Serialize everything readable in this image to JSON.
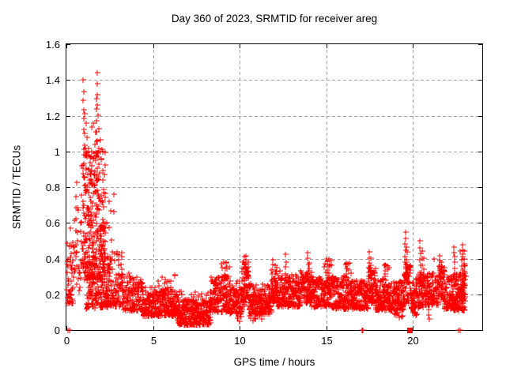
{
  "window": {
    "background": "#ffffff"
  },
  "chart_data": {
    "type": "scatter",
    "title": "Day 360 of 2023, SRMTID for receiver areg",
    "xlabel": "GPS time / hours",
    "ylabel": "SRMTID / TECUs",
    "series_name": "SRMTID",
    "xlim": [
      0,
      24
    ],
    "ylim": [
      0,
      1.6
    ],
    "x_ticks": [
      0,
      5,
      10,
      15,
      20
    ],
    "x_tick_labels": [
      "0",
      "5",
      "10",
      "15",
      "20"
    ],
    "y_ticks": [
      0,
      0.2,
      0.4,
      0.6,
      0.8,
      1,
      1.2,
      1.4,
      1.6
    ],
    "y_tick_labels": [
      "0",
      "0.2",
      "0.4",
      "0.6",
      "0.8",
      "1",
      "1.2",
      "1.4",
      "1.6"
    ],
    "grid": true,
    "legend_position": "none",
    "marker": "plus",
    "marker_size_px": 7,
    "marker_color": "#ff0000",
    "grid_color": "#a0a0a0",
    "axis_color": "#000000",
    "seed": 20231226,
    "density_bands": {
      "format": [
        "x_start",
        "x_end",
        "x_step",
        "points_per_step",
        "y_min",
        "y_max",
        "skew_power"
      ],
      "segments": [
        [
          0.03,
          0.4,
          0.03,
          3,
          0.15,
          0.5,
          1.7
        ],
        [
          0.03,
          0.28,
          0.045,
          1,
          0.3,
          0.63,
          1.0
        ],
        [
          0.42,
          0.95,
          0.035,
          2,
          0.22,
          0.62,
          1.2
        ],
        [
          0.6,
          0.95,
          0.06,
          1,
          0.55,
          0.97,
          1.0
        ],
        [
          0.95,
          2.25,
          0.018,
          4,
          0.28,
          1.02,
          1.3
        ],
        [
          1.05,
          1.95,
          0.055,
          1,
          0.95,
          1.16,
          1.0
        ],
        [
          1.15,
          2.45,
          0.019,
          2,
          0.12,
          0.38,
          1.3
        ],
        [
          2.25,
          3.25,
          0.026,
          3,
          0.13,
          0.45,
          1.5
        ],
        [
          2.25,
          2.75,
          0.075,
          1,
          0.45,
          0.8,
          1.0
        ],
        [
          3.25,
          4.4,
          0.024,
          3,
          0.11,
          0.3,
          1.6
        ],
        [
          4.4,
          6.4,
          0.021,
          3,
          0.08,
          0.24,
          1.6
        ],
        [
          5.3,
          6.3,
          0.1,
          1,
          0.24,
          0.31,
          1.0
        ],
        [
          6.4,
          8.3,
          0.021,
          3,
          0.03,
          0.17,
          1.3
        ],
        [
          6.4,
          8.3,
          0.07,
          1,
          0.14,
          0.22,
          1.0
        ],
        [
          8.3,
          9.45,
          0.023,
          3,
          0.1,
          0.3,
          1.4
        ],
        [
          8.95,
          9.4,
          0.045,
          1,
          0.28,
          0.38,
          1.0
        ],
        [
          9.45,
          10.15,
          0.024,
          3,
          0.09,
          0.28,
          1.4
        ],
        [
          9.8,
          10.1,
          0.05,
          1,
          0.05,
          0.1,
          1.0
        ],
        [
          10.15,
          10.5,
          0.022,
          3,
          0.15,
          0.38,
          1.2
        ],
        [
          10.5,
          11.8,
          0.021,
          3,
          0.09,
          0.26,
          1.4
        ],
        [
          10.55,
          11.25,
          0.07,
          1,
          0.05,
          0.1,
          1.0
        ],
        [
          11.8,
          12.15,
          0.025,
          3,
          0.15,
          0.35,
          1.2
        ],
        [
          12.15,
          13.5,
          0.021,
          3,
          0.13,
          0.31,
          1.3
        ],
        [
          13.5,
          14.15,
          0.023,
          3,
          0.15,
          0.33,
          1.2
        ],
        [
          14.15,
          15.35,
          0.021,
          3,
          0.13,
          0.3,
          1.3
        ],
        [
          14.85,
          15.3,
          0.05,
          1,
          0.3,
          0.4,
          1.0
        ],
        [
          15.35,
          16.45,
          0.022,
          3,
          0.12,
          0.3,
          1.4
        ],
        [
          16.05,
          16.4,
          0.05,
          1,
          0.3,
          0.38,
          1.0
        ],
        [
          16.45,
          17.4,
          0.022,
          3,
          0.12,
          0.28,
          1.4
        ],
        [
          17.4,
          17.8,
          0.024,
          3,
          0.15,
          0.35,
          1.2
        ],
        [
          17.8,
          19.45,
          0.021,
          3,
          0.11,
          0.28,
          1.4
        ],
        [
          18.25,
          18.6,
          0.05,
          1,
          0.28,
          0.37,
          1.0
        ],
        [
          18.9,
          19.35,
          0.06,
          1,
          0.06,
          0.1,
          1.0
        ],
        [
          19.45,
          19.9,
          0.022,
          3,
          0.15,
          0.38,
          1.2
        ],
        [
          19.9,
          20.3,
          0.024,
          3,
          0.12,
          0.3,
          1.4
        ],
        [
          19.95,
          20.25,
          0.055,
          1,
          0.08,
          0.12,
          1.0
        ],
        [
          20.3,
          20.85,
          0.022,
          3,
          0.13,
          0.32,
          1.3
        ],
        [
          20.85,
          21.45,
          0.022,
          3,
          0.14,
          0.32,
          1.4
        ],
        [
          21.45,
          21.8,
          0.024,
          3,
          0.17,
          0.36,
          1.2
        ],
        [
          21.8,
          22.3,
          0.023,
          3,
          0.12,
          0.3,
          1.4
        ],
        [
          22.3,
          23.0,
          0.016,
          3,
          0.11,
          0.32,
          1.3
        ],
        [
          22.85,
          23.0,
          0.045,
          1,
          0.3,
          0.44,
          1.0
        ]
      ]
    },
    "spike_columns": {
      "format": [
        "x",
        "y_min",
        "y_max",
        "n_points"
      ],
      "segments": [
        [
          0.55,
          0.55,
          0.75,
          4
        ],
        [
          1.0,
          1.13,
          1.33,
          5
        ],
        [
          1.02,
          0.98,
          1.1,
          3
        ],
        [
          1.73,
          1.05,
          1.3,
          5
        ],
        [
          1.79,
          1.2,
          1.44,
          5
        ],
        [
          9.2,
          0.3,
          0.38,
          3
        ],
        [
          10.26,
          0.14,
          0.41,
          9
        ],
        [
          10.36,
          0.18,
          0.42,
          8
        ],
        [
          11.92,
          0.16,
          0.4,
          8
        ],
        [
          12.02,
          0.18,
          0.36,
          6
        ],
        [
          12.65,
          0.2,
          0.42,
          7
        ],
        [
          13.92,
          0.2,
          0.44,
          8
        ],
        [
          14.02,
          0.18,
          0.38,
          6
        ],
        [
          15.05,
          0.25,
          0.4,
          6
        ],
        [
          15.15,
          0.22,
          0.36,
          5
        ],
        [
          16.15,
          0.25,
          0.38,
          5
        ],
        [
          17.48,
          0.2,
          0.44,
          8
        ],
        [
          17.58,
          0.18,
          0.4,
          7
        ],
        [
          18.4,
          0.22,
          0.37,
          5
        ],
        [
          19.55,
          0.28,
          0.545,
          9
        ],
        [
          19.63,
          0.25,
          0.47,
          7
        ],
        [
          20.05,
          0.09,
          0.15,
          3
        ],
        [
          20.4,
          0.22,
          0.5,
          9
        ],
        [
          20.5,
          0.2,
          0.44,
          7
        ],
        [
          20.62,
          0.18,
          0.4,
          5
        ],
        [
          20.9,
          0.06,
          0.14,
          4
        ],
        [
          21.52,
          0.22,
          0.42,
          7
        ],
        [
          21.6,
          0.2,
          0.38,
          5
        ],
        [
          22.38,
          0.25,
          0.47,
          8
        ],
        [
          22.85,
          0.12,
          0.475,
          14
        ],
        [
          22.93,
          0.2,
          0.44,
          7
        ]
      ]
    },
    "extra_points": [
      [
        0.98,
        1.4
      ],
      [
        1.05,
        1.21
      ],
      [
        1.3,
        1.0
      ],
      [
        1.45,
        1.0
      ],
      [
        1.6,
        0.99
      ],
      [
        1.15,
        0.12
      ],
      [
        3.6,
        0.32
      ],
      [
        9.0,
        0.35
      ],
      [
        12.3,
        0.33
      ],
      [
        21.2,
        0.4
      ],
      [
        22.7,
        0.44
      ],
      [
        23.02,
        0.3
      ],
      [
        23.0,
        0.25
      ]
    ],
    "zero_line_points": [
      0.1,
      0.2,
      17.05,
      17.11,
      22.62,
      22.74
    ],
    "zero_block_x": 19.82
  }
}
